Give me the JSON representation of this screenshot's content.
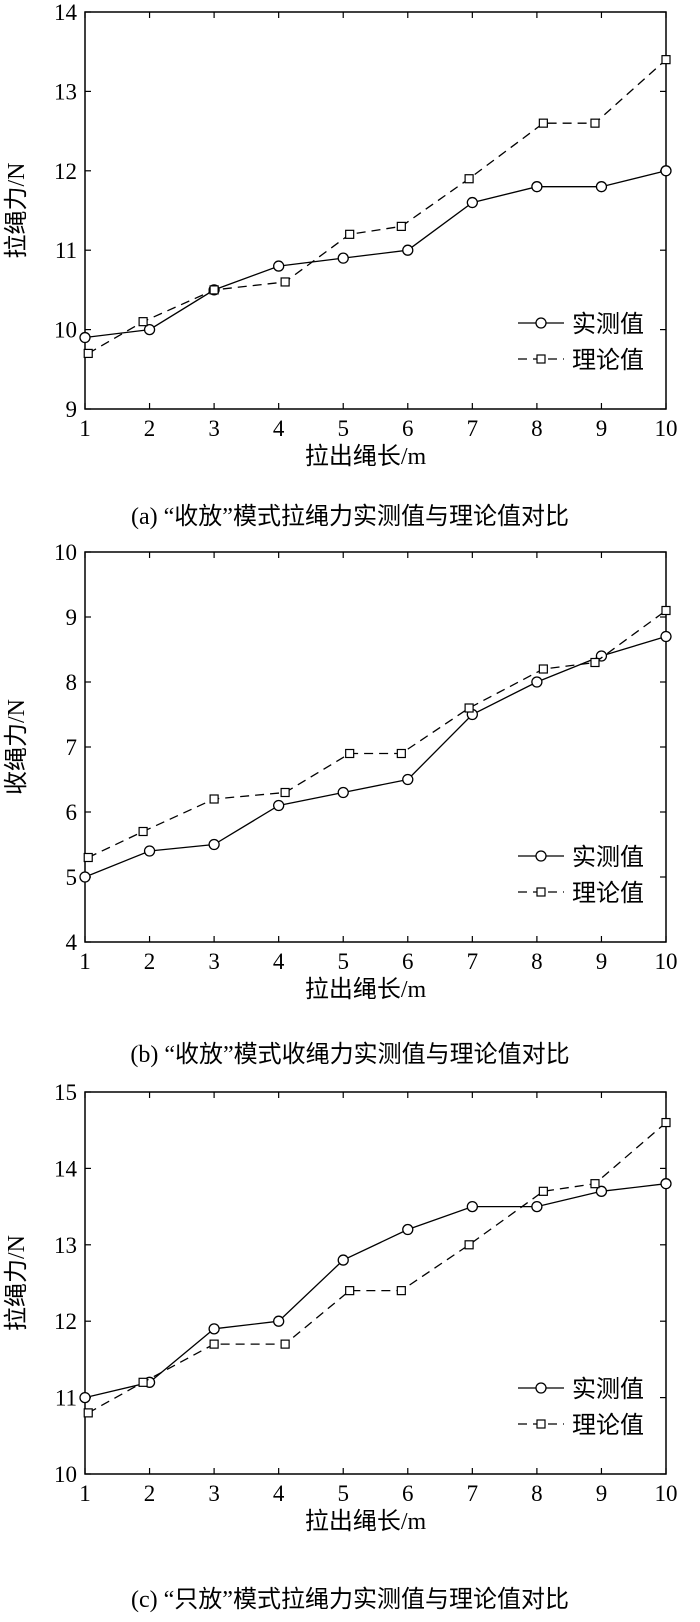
{
  "chart_data": [
    {
      "type": "line",
      "panel": "a",
      "caption": "(a) “收放”模式拉绳力实测值与理论值对比",
      "xlabel": "拉出绳长/m",
      "ylabel": "拉绳力/N",
      "xlim": [
        1,
        10
      ],
      "ylim": [
        9,
        14
      ],
      "xticks": [
        1,
        2,
        3,
        4,
        5,
        6,
        7,
        8,
        9,
        10
      ],
      "yticks": [
        9,
        10,
        11,
        12,
        13,
        14
      ],
      "grid": false,
      "legend_position": "bottom-right",
      "series": [
        {
          "name": "实测值",
          "style": "solid",
          "marker": "circle",
          "x": [
            1,
            2,
            3,
            4,
            5,
            6,
            7,
            8,
            9,
            10
          ],
          "y": [
            9.9,
            10.0,
            10.5,
            10.8,
            10.9,
            11.0,
            11.6,
            11.8,
            11.8,
            12.0
          ]
        },
        {
          "name": "理论值",
          "style": "dashed",
          "marker": "square",
          "x": [
            1.05,
            1.9,
            3,
            4.1,
            5.1,
            5.9,
            6.95,
            8.1,
            8.9,
            10
          ],
          "y": [
            9.7,
            10.1,
            10.5,
            10.6,
            11.2,
            11.3,
            11.9,
            12.6,
            12.6,
            13.4
          ]
        }
      ]
    },
    {
      "type": "line",
      "panel": "b",
      "caption": "(b) “收放”模式收绳力实测值与理论值对比",
      "xlabel": "拉出绳长/m",
      "ylabel": "收绳力/N",
      "xlim": [
        1,
        10
      ],
      "ylim": [
        4,
        10
      ],
      "xticks": [
        1,
        2,
        3,
        4,
        5,
        6,
        7,
        8,
        9,
        10
      ],
      "yticks": [
        4,
        5,
        6,
        7,
        8,
        9,
        10
      ],
      "grid": false,
      "legend_position": "bottom-right",
      "series": [
        {
          "name": "实测值",
          "style": "solid",
          "marker": "circle",
          "x": [
            1,
            2,
            3,
            4,
            5,
            6,
            7,
            8,
            9,
            10
          ],
          "y": [
            5.0,
            5.4,
            5.5,
            6.1,
            6.3,
            6.5,
            7.5,
            8.0,
            8.4,
            8.7
          ]
        },
        {
          "name": "理论值",
          "style": "dashed",
          "marker": "square",
          "x": [
            1.05,
            1.9,
            3,
            4.1,
            5.1,
            5.9,
            6.95,
            8.1,
            8.9,
            10
          ],
          "y": [
            5.3,
            5.7,
            6.2,
            6.3,
            6.9,
            6.9,
            7.6,
            8.2,
            8.3,
            9.1
          ]
        }
      ]
    },
    {
      "type": "line",
      "panel": "c",
      "caption": "(c) “只放”模式拉绳力实测值与理论值对比",
      "xlabel": "拉出绳长/m",
      "ylabel": "拉绳力/N",
      "xlim": [
        1,
        10
      ],
      "ylim": [
        10,
        15
      ],
      "xticks": [
        1,
        2,
        3,
        4,
        5,
        6,
        7,
        8,
        9,
        10
      ],
      "yticks": [
        10,
        11,
        12,
        13,
        14,
        15
      ],
      "grid": false,
      "legend_position": "bottom-right",
      "series": [
        {
          "name": "实测值",
          "style": "solid",
          "marker": "circle",
          "x": [
            1,
            2,
            3,
            4,
            5,
            6,
            7,
            8,
            9,
            10
          ],
          "y": [
            11.0,
            11.2,
            11.9,
            12.0,
            12.8,
            13.2,
            13.5,
            13.5,
            13.7,
            13.8
          ]
        },
        {
          "name": "理论值",
          "style": "dashed",
          "marker": "square",
          "x": [
            1.05,
            1.9,
            3,
            4.1,
            5.1,
            5.9,
            6.95,
            8.1,
            8.9,
            10
          ],
          "y": [
            10.8,
            11.2,
            11.7,
            11.7,
            12.4,
            12.4,
            13.0,
            13.7,
            13.8,
            14.6
          ]
        }
      ]
    }
  ]
}
